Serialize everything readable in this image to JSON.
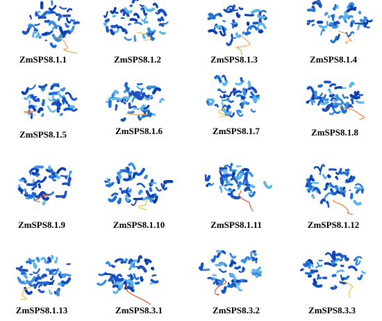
{
  "labels": [
    "ZmSPS8.1.1",
    "ZmSPS8.1.2",
    "ZmSPS8.1.3",
    "ZmSPS8.1.4",
    "ZmSPS8.1.5",
    "ZmSPS8.1.6",
    "ZmSPS8.1.7",
    "ZmSPS8.1.8",
    "ZmSPS8.1.9",
    "ZmSPS8.1.10",
    "ZmSPS8.1.11",
    "ZmSPS8.1.12",
    "ZmSPS8.1.13",
    "ZmSPS8.3.1",
    "ZmSPS8.3.2",
    "ZmSPS8.3.3"
  ]
}
